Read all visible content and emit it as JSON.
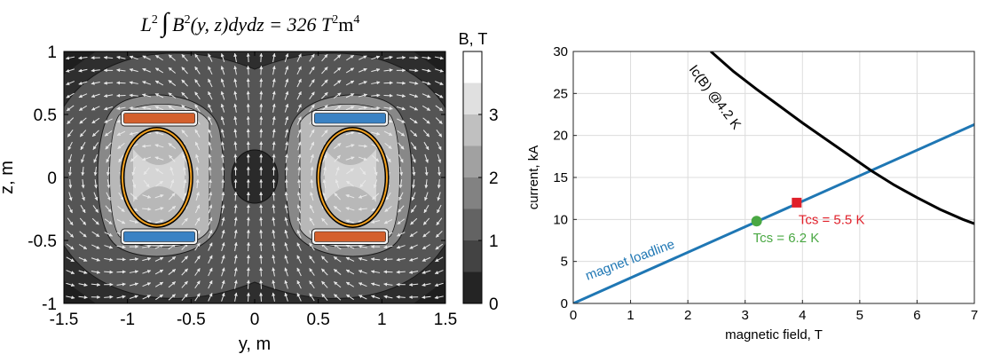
{
  "chart_data": [
    {
      "type": "heatmap",
      "title": "L² ∫ B²(y,z) dydz = 326 T²m⁴",
      "title_parts": {
        "L": "L",
        "sq": "2",
        "int": "∫",
        "Bp": "B",
        "rest": "(y, z)dydz = 326 T",
        "m": "m",
        "m_exp": "4"
      },
      "xlabel": "y, m",
      "ylabel": "z, m",
      "xlim": [
        -1.5,
        1.5
      ],
      "ylim": [
        -1,
        1
      ],
      "x_ticks": [
        "-1.5",
        "-1",
        "-0.5",
        "0",
        "0.5",
        "1",
        "1.5"
      ],
      "x_tick_values": [
        -1.5,
        -1,
        -0.5,
        0,
        0.5,
        1,
        1.5
      ],
      "y_ticks": [
        "1",
        "0.5",
        "0",
        "-0.5",
        "-1"
      ],
      "y_tick_values": [
        1,
        0.5,
        0,
        -0.5,
        -1
      ],
      "colorbar": {
        "label": "B, T",
        "ticks": [
          "3",
          "2",
          "1",
          "0"
        ],
        "tick_values": [
          3,
          2,
          1,
          0
        ],
        "range": [
          0,
          4
        ],
        "levels": [
          0,
          0.5,
          1,
          1.5,
          2,
          2.5,
          3,
          3.5,
          4
        ]
      },
      "coils": [
        {
          "y": -0.75,
          "z": 0.47,
          "color": "#d4602d"
        },
        {
          "y": 0.75,
          "z": 0.47,
          "color": "#3a82c4"
        },
        {
          "y": -0.75,
          "z": -0.47,
          "color": "#3a82c4"
        },
        {
          "y": 0.75,
          "z": -0.47,
          "color": "#d4602d"
        }
      ],
      "rings": [
        {
          "y": -0.77,
          "z": 0.0,
          "ry": 0.27,
          "rz": 0.38
        },
        {
          "y": 0.77,
          "z": 0.0,
          "ry": 0.27,
          "rz": 0.38
        }
      ]
    },
    {
      "type": "line",
      "xlabel": "magnetic field, T",
      "ylabel": "current, kA",
      "xlim": [
        0,
        7
      ],
      "ylim": [
        0,
        30
      ],
      "x_ticks": [
        "0",
        "1",
        "2",
        "3",
        "4",
        "5",
        "6",
        "7"
      ],
      "y_ticks": [
        "0",
        "5",
        "10",
        "15",
        "20",
        "25",
        "30"
      ],
      "grid": true,
      "series": [
        {
          "name": "magnet loadline",
          "color": "#1f77b4",
          "x": [
            0,
            7
          ],
          "y": [
            0,
            21.3
          ]
        },
        {
          "name": "Ic(B) @4.2 K",
          "color": "#000000",
          "x": [
            2.4,
            2.8,
            3.2,
            3.6,
            4.0,
            4.4,
            4.8,
            5.2,
            5.6,
            6.0,
            6.4,
            6.8,
            7.0
          ],
          "y": [
            30.0,
            27.6,
            25.5,
            23.5,
            21.5,
            19.6,
            17.7,
            15.8,
            14.1,
            12.6,
            11.2,
            10.0,
            9.5
          ]
        }
      ],
      "points": [
        {
          "label": "Tcs = 6.2 K",
          "x": 3.2,
          "y": 9.8,
          "color": "#4aa843",
          "marker": "circle"
        },
        {
          "label": "Tcs = 5.5 K",
          "x": 3.9,
          "y": 12.0,
          "color": "#e0202a",
          "marker": "square"
        }
      ]
    }
  ]
}
